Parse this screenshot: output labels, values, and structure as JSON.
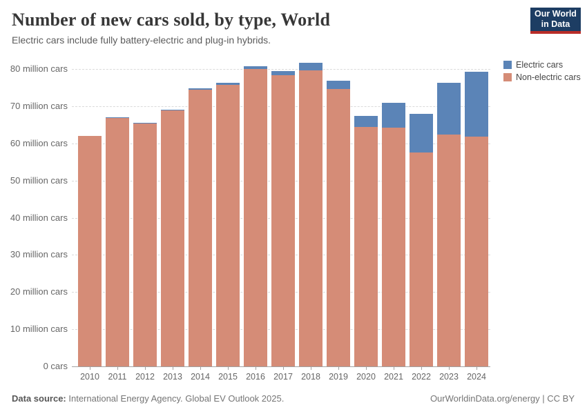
{
  "header": {
    "title": "Number of new cars sold, by type, World",
    "subtitle": "Electric cars include fully battery-electric and plug-in hybrids.",
    "logo": {
      "line1": "Our World",
      "line2": "in Data"
    }
  },
  "legend": [
    {
      "id": "electric-cars",
      "label": "Electric cars",
      "color": "#5b84b7"
    },
    {
      "id": "non-electric-cars",
      "label": "Non-electric cars",
      "color": "#d58c77"
    }
  ],
  "chart_data": {
    "type": "bar",
    "stacked": true,
    "title": "Number of new cars sold, by type, World",
    "categories": [
      "2010",
      "2011",
      "2012",
      "2013",
      "2014",
      "2015",
      "2016",
      "2017",
      "2018",
      "2019",
      "2020",
      "2021",
      "2022",
      "2023",
      "2024"
    ],
    "series": [
      {
        "name": "Non-electric cars",
        "color": "#d58c77",
        "values": [
          62.0,
          66.9,
          65.4,
          68.9,
          74.4,
          75.7,
          80.0,
          78.3,
          79.6,
          74.7,
          64.4,
          64.3,
          57.5,
          62.3,
          61.9
        ]
      },
      {
        "name": "Electric cars",
        "color": "#5b84b7",
        "values": [
          0.01,
          0.06,
          0.13,
          0.22,
          0.33,
          0.55,
          0.75,
          1.2,
          2.1,
          2.2,
          3.0,
          6.6,
          10.5,
          13.9,
          17.4
        ]
      }
    ],
    "unit": "million cars",
    "ylim": [
      0,
      80
    ],
    "grid": "dashed horizontal",
    "legend_position": "top-right",
    "yticks": [
      {
        "value": 0,
        "label": "0 cars"
      },
      {
        "value": 10,
        "label": "10 million cars"
      },
      {
        "value": 20,
        "label": "20 million cars"
      },
      {
        "value": 30,
        "label": "30 million cars"
      },
      {
        "value": 40,
        "label": "40 million cars"
      },
      {
        "value": 50,
        "label": "50 million cars"
      },
      {
        "value": 60,
        "label": "60 million cars"
      },
      {
        "value": 70,
        "label": "70 million cars"
      },
      {
        "value": 80,
        "label": "80 million cars"
      }
    ]
  },
  "footer": {
    "source_label": "Data source:",
    "source_text": "International Energy Agency. Global EV Outlook 2025.",
    "credit": "OurWorldinData.org/energy | CC BY"
  }
}
